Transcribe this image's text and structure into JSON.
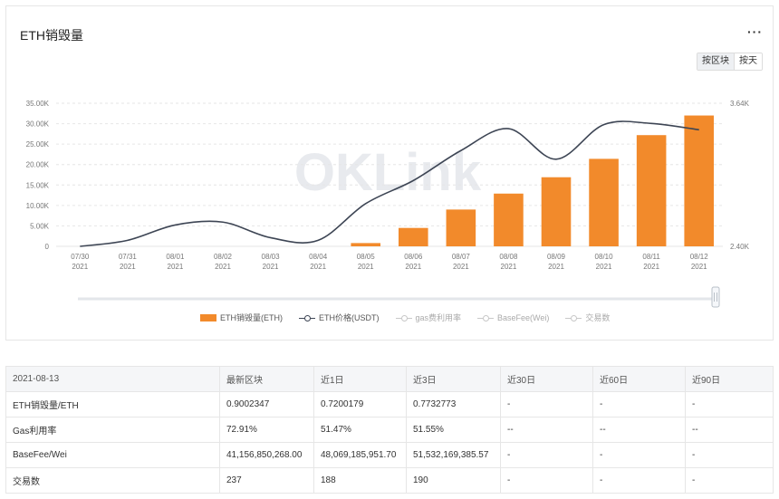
{
  "card": {
    "title": "ETH销毁量",
    "more_label": "···",
    "toggle": [
      {
        "label": "按区块",
        "active": true
      },
      {
        "label": "按天",
        "active": false
      }
    ],
    "watermark": "OKLink"
  },
  "chart_data": {
    "type": "bar",
    "categories": [
      "07/30\n2021",
      "07/31\n2021",
      "08/01\n2021",
      "08/02\n2021",
      "08/03\n2021",
      "08/04\n2021",
      "08/05\n2021",
      "08/06\n2021",
      "08/07\n2021",
      "08/08\n2021",
      "08/09\n2021",
      "08/10\n2021",
      "08/11\n2021",
      "08/12\n2021"
    ],
    "x_tick_labels": [
      {
        "date": "07/30",
        "year": "2021"
      },
      {
        "date": "07/31",
        "year": "2021"
      },
      {
        "date": "08/01",
        "year": "2021"
      },
      {
        "date": "08/02",
        "year": "2021"
      },
      {
        "date": "08/03",
        "year": "2021"
      },
      {
        "date": "08/04",
        "year": "2021"
      },
      {
        "date": "08/05",
        "year": "2021"
      },
      {
        "date": "08/06",
        "year": "2021"
      },
      {
        "date": "08/07",
        "year": "2021"
      },
      {
        "date": "08/08",
        "year": "2021"
      },
      {
        "date": "08/09",
        "year": "2021"
      },
      {
        "date": "08/10",
        "year": "2021"
      },
      {
        "date": "08/11",
        "year": "2021"
      },
      {
        "date": "08/12",
        "year": "2021"
      }
    ],
    "series": [
      {
        "name": "ETH销毁量(ETH)",
        "kind": "bar",
        "axis": "left",
        "color": "#f28a2b",
        "values": [
          0,
          0,
          0,
          0,
          0,
          0,
          800,
          4500,
          9000,
          12900,
          16900,
          21400,
          27200,
          32000
        ]
      },
      {
        "name": "ETH价格(USDT)",
        "kind": "line",
        "axis": "right",
        "color": "#3d4554",
        "values": [
          2400,
          2452,
          2585,
          2610,
          2475,
          2452,
          2770,
          2970,
          3230,
          3420,
          3155,
          3455,
          3465,
          3410
        ]
      }
    ],
    "left_axis": {
      "ylim": [
        0,
        35000
      ],
      "tick_labels": [
        "0",
        "5.00K",
        "10.00K",
        "15.00K",
        "20.00K",
        "25.00K",
        "30.00K",
        "35.00K"
      ]
    },
    "right_axis": {
      "ylim": [
        2400,
        3640
      ],
      "tick_labels": [
        "2.40K",
        "3.64K"
      ]
    },
    "grid": true,
    "legend_position": "bottom",
    "legend": [
      {
        "label": "ETH销毁量(ETH)",
        "kind": "bar",
        "active": true
      },
      {
        "label": "ETH价格(USDT)",
        "kind": "line",
        "active": true
      },
      {
        "label": "gas费利用率",
        "kind": "line",
        "active": false
      },
      {
        "label": "BaseFee(Wei)",
        "kind": "line",
        "active": false
      },
      {
        "label": "交易数",
        "kind": "line",
        "active": false
      }
    ]
  },
  "table": {
    "headers": [
      "2021-08-13",
      "最新区块",
      "近1日",
      "近3日",
      "近30日",
      "近60日",
      "近90日"
    ],
    "rows": [
      [
        "ETH销毁量/ETH",
        "0.9002347",
        "0.7200179",
        "0.7732773",
        "-",
        "-",
        "-"
      ],
      [
        "Gas利用率",
        "72.91%",
        "51.47%",
        "51.55%",
        "--",
        "--",
        "--"
      ],
      [
        "BaseFee/Wei",
        "41,156,850,268.00",
        "48,069,185,951.70",
        "51,532,169,385.57",
        "-",
        "-",
        "-"
      ],
      [
        "交易数",
        "237",
        "188",
        "190",
        "-",
        "-",
        "-"
      ]
    ]
  }
}
